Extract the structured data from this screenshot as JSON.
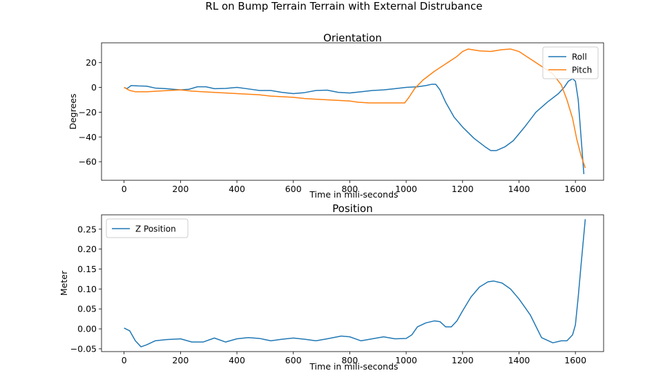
{
  "figure": {
    "suptitle": "RL on Bump Terrain Terrain with External Distrubance"
  },
  "colors": {
    "blue": "#1f77b4",
    "orange": "#ff7f0e"
  },
  "chart_data": [
    {
      "type": "line",
      "title": "Orientation",
      "xlabel": "Time in mili-seconds",
      "ylabel": "Degrees",
      "xlim": [
        -80,
        1700
      ],
      "ylim": [
        -75,
        36
      ],
      "xticks": [
        0,
        200,
        400,
        600,
        800,
        1000,
        1200,
        1400,
        1600
      ],
      "yticks": [
        20,
        0,
        -20,
        -40,
        -60
      ],
      "grid": false,
      "legend_position": "upper right",
      "series": [
        {
          "name": "Roll",
          "color": "#1f77b4",
          "points": [
            [
              0,
              0
            ],
            [
              10,
              -1
            ],
            [
              25,
              1.5
            ],
            [
              50,
              1.2
            ],
            [
              80,
              1
            ],
            [
              110,
              -0.5
            ],
            [
              150,
              -1
            ],
            [
              200,
              -2
            ],
            [
              230,
              -1.5
            ],
            [
              260,
              0.5
            ],
            [
              290,
              0.5
            ],
            [
              320,
              -1
            ],
            [
              360,
              -0.8
            ],
            [
              400,
              0
            ],
            [
              440,
              -1.2
            ],
            [
              480,
              -2.5
            ],
            [
              520,
              -2.5
            ],
            [
              560,
              -4
            ],
            [
              600,
              -5
            ],
            [
              640,
              -4.2
            ],
            [
              680,
              -2.5
            ],
            [
              720,
              -2.2
            ],
            [
              760,
              -4
            ],
            [
              800,
              -4.5
            ],
            [
              840,
              -3.5
            ],
            [
              880,
              -2.5
            ],
            [
              920,
              -2
            ],
            [
              960,
              -1
            ],
            [
              1000,
              0
            ],
            [
              1040,
              0.5
            ],
            [
              1070,
              1.5
            ],
            [
              1090,
              2.5
            ],
            [
              1105,
              2.5
            ],
            [
              1120,
              -2
            ],
            [
              1140,
              -12
            ],
            [
              1170,
              -24
            ],
            [
              1200,
              -32
            ],
            [
              1240,
              -41
            ],
            [
              1280,
              -48
            ],
            [
              1300,
              -51
            ],
            [
              1320,
              -51
            ],
            [
              1350,
              -48
            ],
            [
              1380,
              -43
            ],
            [
              1420,
              -32
            ],
            [
              1460,
              -20
            ],
            [
              1500,
              -12
            ],
            [
              1540,
              -5
            ],
            [
              1560,
              0
            ],
            [
              1575,
              5
            ],
            [
              1590,
              7
            ],
            [
              1600,
              5
            ],
            [
              1610,
              -10
            ],
            [
              1620,
              -40
            ],
            [
              1630,
              -70
            ]
          ]
        },
        {
          "name": "Pitch",
          "color": "#ff7f0e",
          "points": [
            [
              0,
              0
            ],
            [
              20,
              -2.5
            ],
            [
              40,
              -3.5
            ],
            [
              80,
              -3.5
            ],
            [
              120,
              -3
            ],
            [
              160,
              -2.5
            ],
            [
              200,
              -2
            ],
            [
              240,
              -3
            ],
            [
              280,
              -3.5
            ],
            [
              320,
              -4
            ],
            [
              360,
              -4.5
            ],
            [
              400,
              -5
            ],
            [
              440,
              -5.5
            ],
            [
              480,
              -6
            ],
            [
              520,
              -7
            ],
            [
              560,
              -7.5
            ],
            [
              600,
              -8
            ],
            [
              640,
              -9
            ],
            [
              680,
              -9.5
            ],
            [
              720,
              -10
            ],
            [
              760,
              -10.5
            ],
            [
              800,
              -11
            ],
            [
              830,
              -12
            ],
            [
              870,
              -12.5
            ],
            [
              920,
              -12.5
            ],
            [
              960,
              -12.5
            ],
            [
              995,
              -12.5
            ],
            [
              1010,
              -8
            ],
            [
              1030,
              -1
            ],
            [
              1060,
              6
            ],
            [
              1100,
              13
            ],
            [
              1140,
              19
            ],
            [
              1180,
              25
            ],
            [
              1200,
              29
            ],
            [
              1220,
              31
            ],
            [
              1260,
              29.5
            ],
            [
              1300,
              29
            ],
            [
              1340,
              30.5
            ],
            [
              1370,
              31
            ],
            [
              1400,
              29
            ],
            [
              1440,
              23
            ],
            [
              1480,
              17
            ],
            [
              1520,
              11
            ],
            [
              1550,
              2
            ],
            [
              1570,
              -10
            ],
            [
              1590,
              -25
            ],
            [
              1605,
              -42
            ],
            [
              1620,
              -55
            ],
            [
              1635,
              -65
            ]
          ]
        }
      ]
    },
    {
      "type": "line",
      "title": "Position",
      "xlabel": "Time in mili-seconds",
      "ylabel": "Meter",
      "xlim": [
        -80,
        1700
      ],
      "ylim": [
        -0.057,
        0.286
      ],
      "xticks": [
        0,
        200,
        400,
        600,
        800,
        1000,
        1200,
        1400,
        1600
      ],
      "yticks": [
        0.25,
        0.2,
        0.15,
        0.1,
        0.05,
        0.0,
        -0.05
      ],
      "ytick_labels": [
        "0.25",
        "0.20",
        "0.15",
        "0.10",
        "0.05",
        "0.00",
        "−0.05"
      ],
      "grid": false,
      "legend_position": "upper left",
      "series": [
        {
          "name": "Z Position",
          "color": "#1f77b4",
          "points": [
            [
              0,
              0.002
            ],
            [
              20,
              -0.005
            ],
            [
              40,
              -0.03
            ],
            [
              60,
              -0.045
            ],
            [
              80,
              -0.04
            ],
            [
              110,
              -0.03
            ],
            [
              150,
              -0.027
            ],
            [
              200,
              -0.025
            ],
            [
              240,
              -0.033
            ],
            [
              280,
              -0.033
            ],
            [
              320,
              -0.023
            ],
            [
              360,
              -0.033
            ],
            [
              400,
              -0.025
            ],
            [
              440,
              -0.022
            ],
            [
              480,
              -0.024
            ],
            [
              520,
              -0.03
            ],
            [
              560,
              -0.026
            ],
            [
              600,
              -0.023
            ],
            [
              640,
              -0.026
            ],
            [
              680,
              -0.03
            ],
            [
              720,
              -0.025
            ],
            [
              770,
              -0.018
            ],
            [
              800,
              -0.02
            ],
            [
              840,
              -0.03
            ],
            [
              880,
              -0.025
            ],
            [
              920,
              -0.02
            ],
            [
              960,
              -0.025
            ],
            [
              1000,
              -0.024
            ],
            [
              1020,
              -0.015
            ],
            [
              1040,
              0.005
            ],
            [
              1070,
              0.015
            ],
            [
              1100,
              0.02
            ],
            [
              1120,
              0.018
            ],
            [
              1140,
              0.005
            ],
            [
              1160,
              0.005
            ],
            [
              1180,
              0.02
            ],
            [
              1200,
              0.045
            ],
            [
              1230,
              0.08
            ],
            [
              1260,
              0.105
            ],
            [
              1290,
              0.118
            ],
            [
              1310,
              0.12
            ],
            [
              1340,
              0.115
            ],
            [
              1370,
              0.1
            ],
            [
              1400,
              0.075
            ],
            [
              1440,
              0.035
            ],
            [
              1480,
              -0.022
            ],
            [
              1520,
              -0.035
            ],
            [
              1550,
              -0.03
            ],
            [
              1570,
              -0.03
            ],
            [
              1590,
              -0.015
            ],
            [
              1600,
              0.01
            ],
            [
              1610,
              0.08
            ],
            [
              1620,
              0.16
            ],
            [
              1635,
              0.275
            ]
          ]
        }
      ]
    }
  ]
}
